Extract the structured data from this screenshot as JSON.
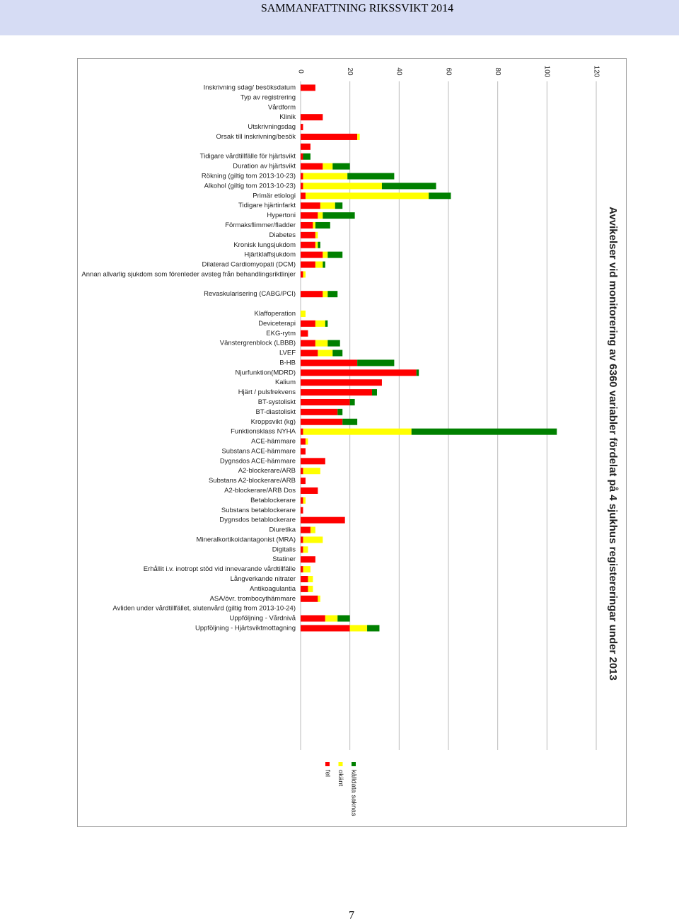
{
  "header": {
    "title": "SAMMANFATTNING RIKSSVIKT 2014"
  },
  "page_number": "7",
  "chart_data": {
    "type": "bar",
    "orientation": "horizontal",
    "stacked": true,
    "title": "Avvikelser vid monitorering av 6360 variabler fördelat på 4 sjukhus registereringar under 2013",
    "categories": [
      "Inskrivning sdag/ besöksdatum",
      "Typ av registrering",
      "Vårdform",
      "Klinik",
      "Utskrivningsdag",
      "Orsak till inskrivning/besök",
      null,
      "Tidigare vårdtillfälle för hjärtsvikt",
      "Duration av hjärtsvikt",
      "Rökning (giltig tom 2013-10-23)",
      "Alkohol (giltig tom 2013-10-23)",
      "Primär etiologi",
      "Tidigare hjärtinfarkt",
      "Hypertoni",
      "Förmaksflimmer/fladder",
      "Diabetes",
      "Kronisk lungsjukdom",
      "Hjärtklaffsjukdom",
      "Dilaterad Cardiomyopati (DCM)",
      "Annan allvarlig sjukdom som förenleder avsteg från behandlingsriktlinjer",
      null,
      "Revaskularisering (CABG/PCI)",
      null,
      "Klaffoperation",
      "Deviceterapi",
      "EKG-rytm",
      "Vänstergrenblock (LBBB)",
      "LVEF",
      "B-HB",
      "Njurfunktion(MDRD)",
      "Kalium",
      "Hjärt / pulsfrekvens",
      "BT-systoliskt",
      "BT-diastoliskt",
      "Kroppsvikt (kg)",
      "Funktionsklass NYHA",
      "ACE-hämmare",
      "Substans ACE-hämmare",
      "Dygnsdos ACE-hämmare",
      "A2-blockerare/ARB",
      "Substans A2-blockerare/ARB",
      "A2-blockerare/ARB Dos",
      "Betablockerare",
      "Substans betablockerare",
      "Dygnsdos betablockerare",
      "Diuretika",
      "Mineralkortikoidantagonist (MRA)",
      "Digitalis",
      "Statiner",
      "Erhållit i.v. inotropt stöd vid innevarande vårdtillfälle",
      "Långverkande nitrater",
      "Antikoagulantia",
      "ASA/övr. trombocythämmare",
      "Avliden under vårdtillfället, slutenvård (giltig from 2013-10-24)",
      "Uppföljning - Vårdnivå",
      "Uppföljning - Hjärtsviktmottagning"
    ],
    "series": [
      {
        "name": "fel",
        "color": "#ff0000",
        "values": [
          6,
          0,
          0,
          9,
          1,
          23,
          4,
          1,
          9,
          1,
          1,
          2,
          8,
          7,
          5,
          6,
          6,
          9,
          6,
          1,
          0,
          9,
          0,
          0,
          6,
          3,
          6,
          7,
          23,
          47,
          33,
          29,
          20,
          15,
          17,
          1,
          2,
          2,
          10,
          1,
          2,
          7,
          1,
          1,
          18,
          4,
          1,
          1,
          6,
          1,
          3,
          3,
          7,
          0,
          10,
          20
        ]
      },
      {
        "name": "okänt",
        "color": "#ffff00",
        "values": [
          0,
          0,
          0,
          0,
          0,
          1,
          0,
          0,
          4,
          18,
          32,
          50,
          6,
          2,
          1,
          1,
          1,
          2,
          3,
          1,
          0,
          2,
          0,
          2,
          4,
          0,
          5,
          6,
          0,
          0,
          0,
          0,
          0,
          0,
          0,
          44,
          1,
          0,
          0,
          7,
          0,
          0,
          1,
          0,
          0,
          2,
          8,
          2,
          0,
          3,
          2,
          2,
          1,
          0,
          5,
          7
        ]
      },
      {
        "name": "källdata saknas",
        "color": "#008000",
        "values": [
          0,
          0,
          0,
          0,
          0,
          0,
          0,
          3,
          7,
          19,
          22,
          9,
          3,
          13,
          6,
          0,
          1,
          6,
          1,
          0,
          0,
          4,
          0,
          0,
          1,
          0,
          5,
          4,
          15,
          1,
          0,
          2,
          2,
          2,
          6,
          59,
          0,
          0,
          0,
          0,
          0,
          0,
          0,
          0,
          0,
          0,
          0,
          0,
          0,
          0,
          0,
          0,
          0,
          0,
          5,
          5
        ]
      }
    ],
    "xlim": [
      0,
      120
    ],
    "xticks": [
      0,
      20,
      40,
      60,
      80,
      100,
      120
    ],
    "grid": true
  }
}
